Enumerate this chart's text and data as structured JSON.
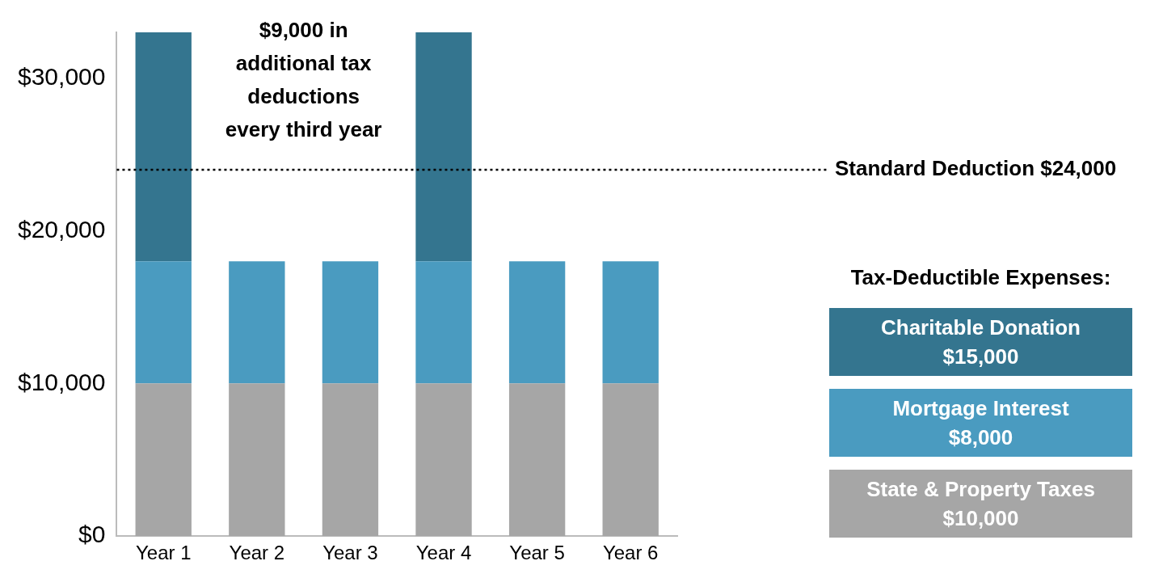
{
  "chart_data": {
    "type": "bar",
    "stacked": true,
    "categories": [
      "Year 1",
      "Year 2",
      "Year 3",
      "Year 4",
      "Year 5",
      "Year 6"
    ],
    "series": [
      {
        "name": "State & Property Taxes $10,000",
        "color": "#a6a6a6",
        "values": [
          10000,
          10000,
          10000,
          10000,
          10000,
          10000
        ]
      },
      {
        "name": "Mortgage Interest $8,000",
        "color": "#4a9bc0",
        "values": [
          8000,
          8000,
          8000,
          8000,
          8000,
          8000
        ]
      },
      {
        "name": "Charitable Donation $15,000",
        "color": "#34758f",
        "values": [
          15000,
          null,
          null,
          15000,
          null,
          null
        ]
      }
    ],
    "ylim": [
      0,
      33000
    ],
    "yticks": [
      {
        "value": 0,
        "label": "$0"
      },
      {
        "value": 10000,
        "label": "$10,000"
      },
      {
        "value": 20000,
        "label": "$20,000"
      },
      {
        "value": 30000,
        "label": "$30,000"
      }
    ],
    "grid": false,
    "legend": "right",
    "legend_title": "Tax-Deductible Expenses:",
    "ref_lines": [
      {
        "axis": "y",
        "value": 24000,
        "label": "Standard Deduction $24,000",
        "line_style": "dotted",
        "color": "#000000"
      }
    ],
    "annotations": [
      "$9,000 in additional tax deductions every third year"
    ]
  }
}
